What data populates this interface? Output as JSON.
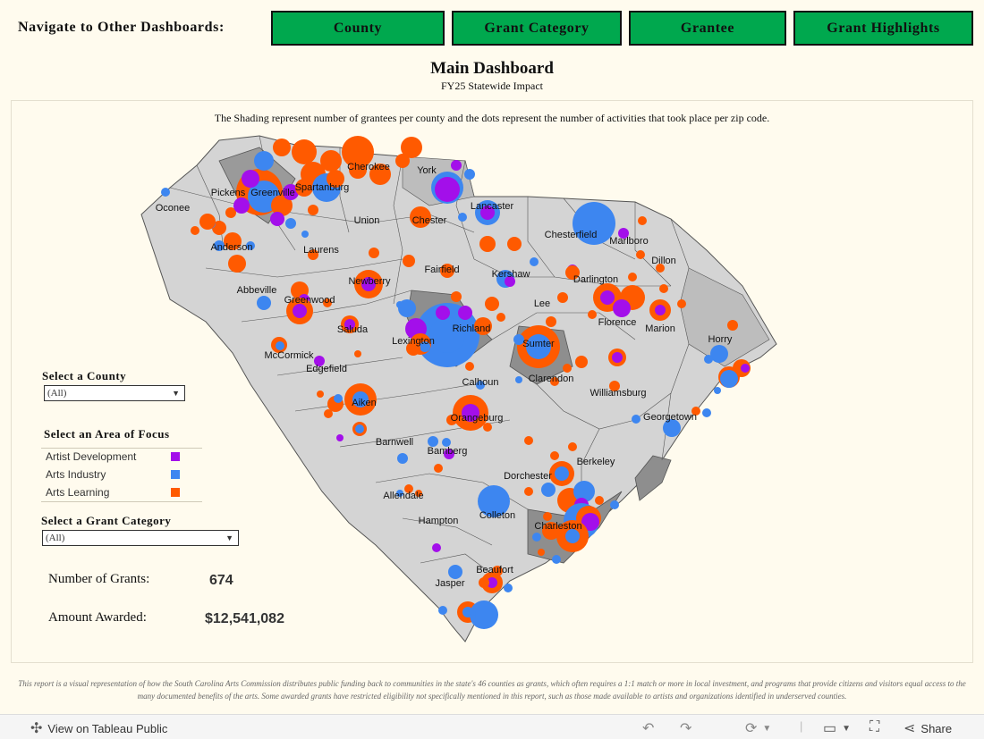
{
  "nav": {
    "label": "Navigate to Other Dashboards:",
    "buttons": [
      "County",
      "Grant Category",
      "Grantee",
      "Grant Highlights"
    ]
  },
  "header": {
    "title": "Main Dashboard",
    "subtitle": "FY25 Statewide Impact"
  },
  "map": {
    "note": "The Shading represent number of grantees per county and the dots represent the number of activities that took place per zip code.",
    "county_labels": [
      "Oconee",
      "Pickens",
      "Greenville",
      "Spartanburg",
      "Cherokee",
      "York",
      "Anderson",
      "Union",
      "Chester",
      "Lancaster",
      "Chesterfield",
      "Marlboro",
      "Laurens",
      "Fairfield",
      "Kershaw",
      "Dillon",
      "Abbeville",
      "Newberry",
      "Darlington",
      "Greenwood",
      "Lee",
      "Florence",
      "Marion",
      "Saluda",
      "Richland",
      "Lexington",
      "Sumter",
      "Horry",
      "McCormick",
      "Edgefield",
      "Calhoun",
      "Clarendon",
      "Williamsburg",
      "Aiken",
      "Orangeburg",
      "Georgetown",
      "Barnwell",
      "Bamberg",
      "Berkeley",
      "Dorchester",
      "Allendale",
      "Colleton",
      "Hampton",
      "Charleston",
      "Beaufort",
      "Jasper"
    ]
  },
  "filters": {
    "county": {
      "label": "Select a County",
      "value": "(All)"
    },
    "area": {
      "label": "Select an Area of Focus",
      "items": [
        {
          "label": "Artist Development",
          "color": "#a30fea"
        },
        {
          "label": "Arts Industry",
          "color": "#3d86f0"
        },
        {
          "label": "Arts Learning",
          "color": "#ff5a00"
        }
      ]
    },
    "category": {
      "label": "Select a Grant Category",
      "value": "(All)"
    }
  },
  "stats": {
    "grants_label": "Number of Grants:",
    "grants_value": "674",
    "amount_label": "Amount Awarded:",
    "amount_value": "$12,541,082"
  },
  "footer": "This report is a visual representation of how the South Carolina Arts Commission distributes public funding back to communities in the state's 46 counties as grants, which often requires a 1:1 match or more in local investment, and programs that provide citizens and visitors equal access to the many documented benefits of the arts. Some awarded grants have restricted eligibility not specifically mentioned in this report, such as those made available to artists and organizations identified in underserved counties.",
  "toolbar": {
    "view_label": "View on Tableau Public",
    "share_label": "Share"
  },
  "colors": {
    "nav_green": "#00a84e",
    "artist": "#a30fea",
    "industry": "#3d86f0",
    "learning": "#ff5a00"
  }
}
